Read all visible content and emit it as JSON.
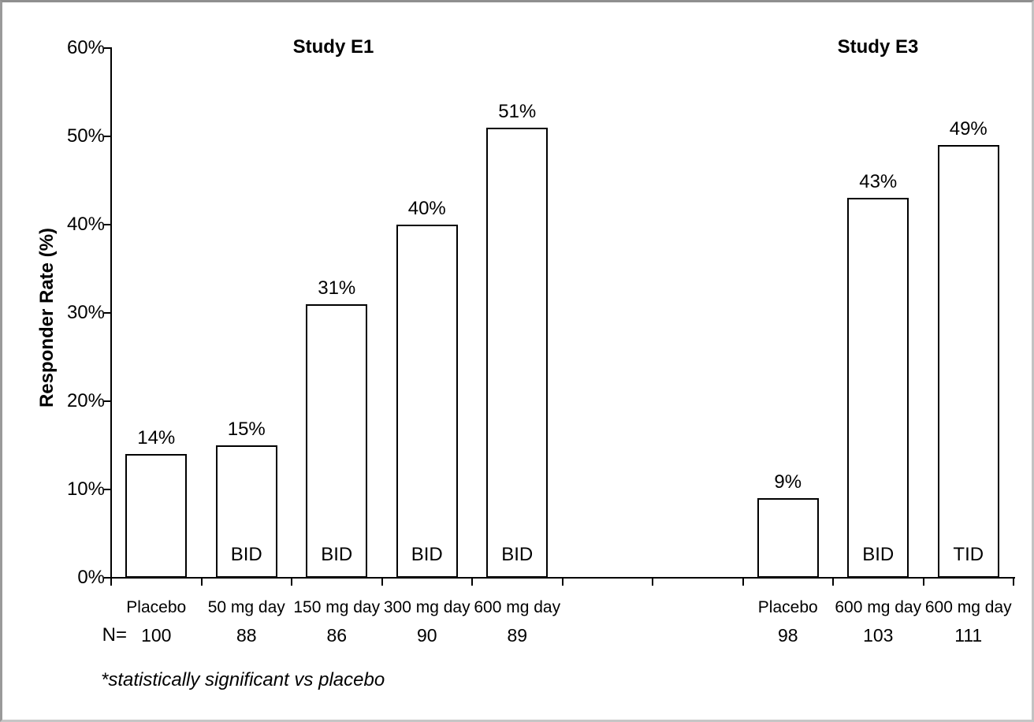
{
  "chart_data": {
    "type": "bar",
    "ylabel": "Responder Rate (%)",
    "ylim": [
      0,
      60
    ],
    "ytick_step": 10,
    "ytick_suffix": "%",
    "grid": false,
    "legend": "none",
    "bar_fill": "#ffffff",
    "bar_border_color": "#000000",
    "text_color": "#000000",
    "n_row_label": "N=",
    "footnote": "*statistically significant vs placebo",
    "groups": [
      {
        "title": "Study E1",
        "bars": [
          {
            "category": "Placebo",
            "value_pct": 14,
            "value_label": "14%",
            "n": "100",
            "dosing": ""
          },
          {
            "category": "50 mg day",
            "value_pct": 15,
            "value_label": "15%",
            "n": "88",
            "dosing": "BID"
          },
          {
            "category": "150 mg day",
            "value_pct": 31,
            "value_label": "31%",
            "n": "86",
            "dosing": "BID"
          },
          {
            "category": "300 mg day",
            "value_pct": 40,
            "value_label": "40%",
            "n": "90",
            "dosing": "BID"
          },
          {
            "category": "600 mg day",
            "value_pct": 51,
            "value_label": "51%",
            "n": "89",
            "dosing": "BID"
          }
        ]
      },
      {
        "title": "Study E3",
        "bars": [
          {
            "category": "Placebo",
            "value_pct": 9,
            "value_label": "9%",
            "n": "98",
            "dosing": ""
          },
          {
            "category": "600 mg day",
            "value_pct": 43,
            "value_label": "43%",
            "n": "103",
            "dosing": "BID"
          },
          {
            "category": "600 mg day",
            "value_pct": 49,
            "value_label": "49%",
            "n": "111",
            "dosing": "TID"
          }
        ]
      }
    ]
  }
}
